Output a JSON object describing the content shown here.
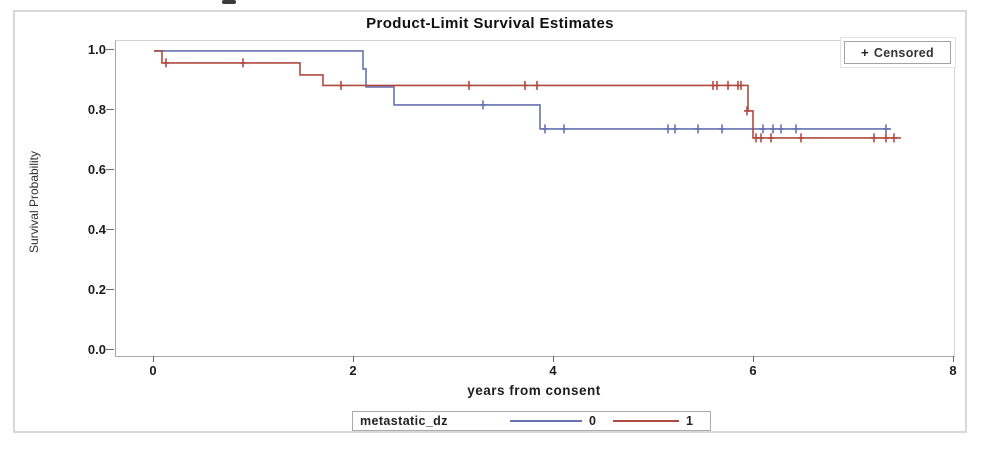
{
  "figure": {
    "title": "Product-Limit Survival Estimates"
  },
  "censored_legend": {
    "symbol": "+",
    "label": "Censored"
  },
  "group_legend": {
    "title": "metastatic_dz",
    "entries": [
      {
        "label": "0",
        "color": "#6672B2"
      },
      {
        "label": "1",
        "color": "#B04A40"
      }
    ]
  },
  "chart_data": {
    "type": "line",
    "subtype": "kaplan-meier-step",
    "title": "Product-Limit Survival Estimates",
    "xlabel": "years from consent",
    "ylabel": "Survival Probability",
    "grid": false,
    "legend_position": "bottom",
    "censored_marker": "+",
    "x_axis": {
      "min": -0.38,
      "max": 8.0,
      "tick_labels": [
        "0",
        "2",
        "4",
        "6",
        "8"
      ],
      "tick_values": [
        0,
        2,
        4,
        6,
        8
      ]
    },
    "y_axis": {
      "min": -0.017,
      "max": 1.033,
      "tick_labels": [
        "1.0",
        "0.8",
        "0.6",
        "0.4",
        "0.2",
        "0.0"
      ],
      "tick_values": [
        1.0,
        0.8,
        0.6,
        0.4,
        0.2,
        0.0
      ]
    },
    "series": [
      {
        "name": "0",
        "group": "metastatic_dz = 0",
        "color": "#6672B2",
        "steps": [
          [
            0,
            1.0
          ],
          [
            2.09,
            0.94
          ],
          [
            2.12,
            0.88
          ],
          [
            2.4,
            0.82
          ],
          [
            3.86,
            0.74
          ]
        ],
        "end_time": 7.37,
        "censored": [
          [
            3.29,
            0.82
          ],
          [
            3.91,
            0.74
          ],
          [
            4.1,
            0.74
          ],
          [
            5.14,
            0.74
          ],
          [
            5.21,
            0.74
          ],
          [
            5.44,
            0.74
          ],
          [
            5.68,
            0.74
          ],
          [
            6.09,
            0.74
          ],
          [
            6.19,
            0.74
          ],
          [
            6.27,
            0.74
          ],
          [
            6.42,
            0.74
          ],
          [
            7.32,
            0.74
          ]
        ]
      },
      {
        "name": "1",
        "group": "metastatic_dz = 1",
        "color": "#B04A40",
        "steps": [
          [
            0,
            1.0
          ],
          [
            0.08,
            0.96
          ],
          [
            1.46,
            0.92
          ],
          [
            1.69,
            0.885
          ],
          [
            5.94,
            0.8
          ],
          [
            5.99,
            0.71
          ]
        ],
        "end_time": 7.47,
        "censored": [
          [
            0.12,
            0.96
          ],
          [
            0.89,
            0.96
          ],
          [
            1.87,
            0.885
          ],
          [
            3.15,
            0.885
          ],
          [
            3.71,
            0.885
          ],
          [
            3.83,
            0.885
          ],
          [
            5.59,
            0.885
          ],
          [
            5.63,
            0.885
          ],
          [
            5.74,
            0.885
          ],
          [
            5.84,
            0.885
          ],
          [
            5.87,
            0.885
          ],
          [
            5.93,
            0.8
          ],
          [
            6.02,
            0.71
          ],
          [
            6.07,
            0.71
          ],
          [
            6.17,
            0.71
          ],
          [
            6.47,
            0.71
          ],
          [
            7.2,
            0.71
          ],
          [
            7.32,
            0.71
          ],
          [
            7.4,
            0.71
          ]
        ]
      }
    ]
  }
}
